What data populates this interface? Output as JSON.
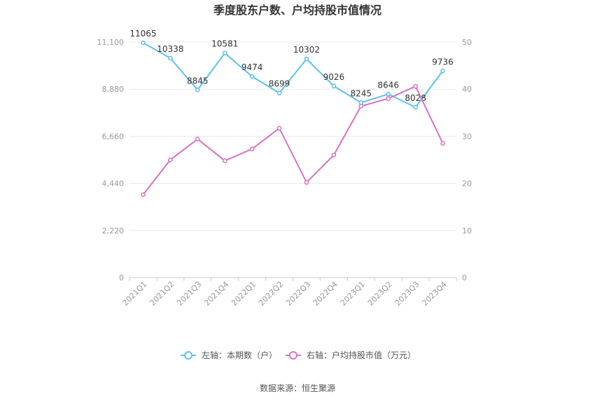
{
  "chart_data": {
    "type": "line",
    "title": "季度股东户数、户均持股市值情况",
    "categories": [
      "2021Q1",
      "2021Q2",
      "2021Q3",
      "2021Q4",
      "2022Q1",
      "2022Q2",
      "2022Q3",
      "2022Q4",
      "2023Q1",
      "2023Q2",
      "2023Q3",
      "2023Q4"
    ],
    "left_axis": {
      "ylim": [
        0,
        11100
      ],
      "ticks": [
        "0",
        "2,220",
        "4,440",
        "6,660",
        "8,880",
        "11,100"
      ]
    },
    "right_axis": {
      "ylim": [
        0,
        50
      ],
      "ticks": [
        "0",
        "10",
        "20",
        "30",
        "40",
        "50"
      ]
    },
    "series": [
      {
        "name": "左轴：本期数（户）",
        "axis": "left",
        "color": "#5bc0f0",
        "values": [
          11065,
          10338,
          8845,
          10581,
          9474,
          8699,
          10302,
          9026,
          8245,
          8646,
          8028,
          9736
        ],
        "labels": [
          "11065",
          "10338",
          "8845",
          "10581",
          "9474",
          "8699",
          "10302",
          "9026",
          "8245",
          "8646",
          "8028",
          "9736"
        ]
      },
      {
        "name": "右轴：户均持股市值（万元）",
        "axis": "right",
        "color": "#d673c0",
        "values": [
          17.6,
          25.0,
          29.4,
          24.8,
          27.3,
          31.7,
          20.2,
          26.0,
          36.4,
          38.0,
          40.6,
          28.5
        ]
      }
    ],
    "grid": true,
    "legend_position": "bottom-center"
  },
  "footer": {
    "source": "数据来源：恒生聚源"
  }
}
